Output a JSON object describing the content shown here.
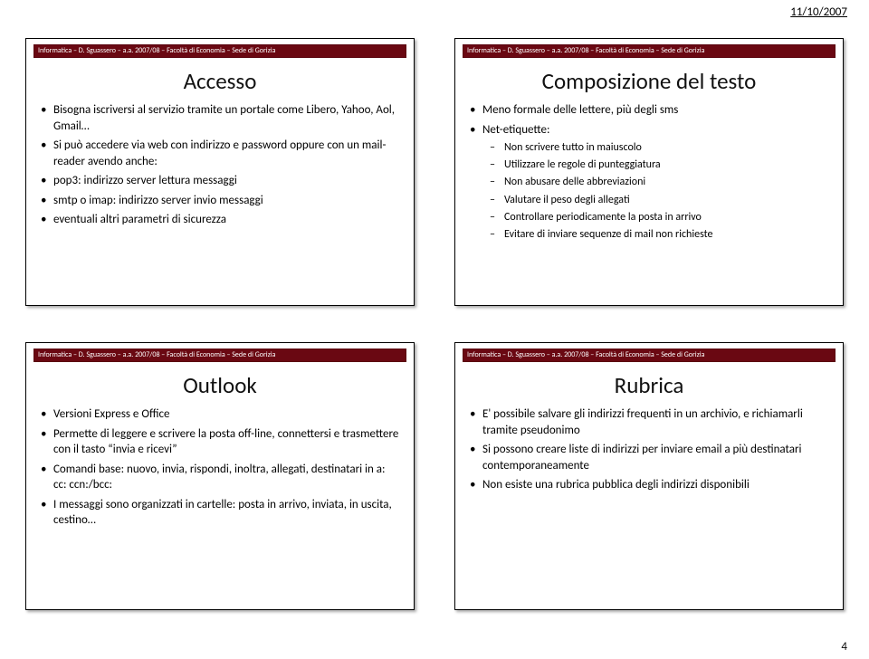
{
  "page": {
    "date": "11/10/2007",
    "number": "4"
  },
  "common": {
    "header_text": "Informatica – D. Sguassero – a.a. 2007/08 – Facoltà di Economia – Sede di Gorizia",
    "header_bg": "#6a0812",
    "header_fg": "#ffffff",
    "title_fontsize": 25,
    "body_fontsize": 13,
    "sub_fontsize": 12
  },
  "slides": [
    {
      "title": "Accesso",
      "items": [
        {
          "text": "Bisogna iscriversi al servizio tramite un portale come Libero, Yahoo, Aol, Gmail…"
        },
        {
          "text": "Si può accedere via web con indirizzo e password oppure con un mail-reader avendo anche:"
        },
        {
          "text": "pop3: indirizzo server lettura messaggi"
        },
        {
          "text": "smtp o imap: indirizzo server invio messaggi"
        },
        {
          "text": "eventuali altri parametri di sicurezza"
        }
      ]
    },
    {
      "title": "Composizione del testo",
      "items": [
        {
          "text": "Meno formale delle lettere, più degli sms"
        },
        {
          "text": "Net-etiquette:",
          "sub": [
            "Non scrivere tutto in maiuscolo",
            "Utilizzare le regole di punteggiatura",
            "Non abusare delle abbreviazioni",
            "Valutare il peso degli allegati",
            "Controllare periodicamente la posta in arrivo",
            "Evitare di inviare sequenze di mail non richieste"
          ]
        }
      ]
    },
    {
      "title": "Outlook",
      "items": [
        {
          "text": "Versioni Express e Office"
        },
        {
          "text": "Permette di leggere e scrivere la posta off-line, connettersi e trasmettere con il tasto “invia e ricevi”"
        },
        {
          "text": "Comandi base: nuovo, invia, rispondi, inoltra, allegati, destinatari in a: cc: ccn:/bcc:"
        },
        {
          "text": "I messaggi sono organizzati in cartelle: posta in arrivo, inviata, in uscita, cestino…"
        }
      ]
    },
    {
      "title": "Rubrica",
      "items": [
        {
          "text": "E' possibile salvare gli indirizzi frequenti in un archivio, e richiamarli tramite pseudonimo"
        },
        {
          "text": "Si possono creare liste di indirizzi per inviare email a più destinatari contemporaneamente"
        },
        {
          "text": "Non esiste una rubrica pubblica degli indirizzi disponibili"
        }
      ]
    }
  ]
}
